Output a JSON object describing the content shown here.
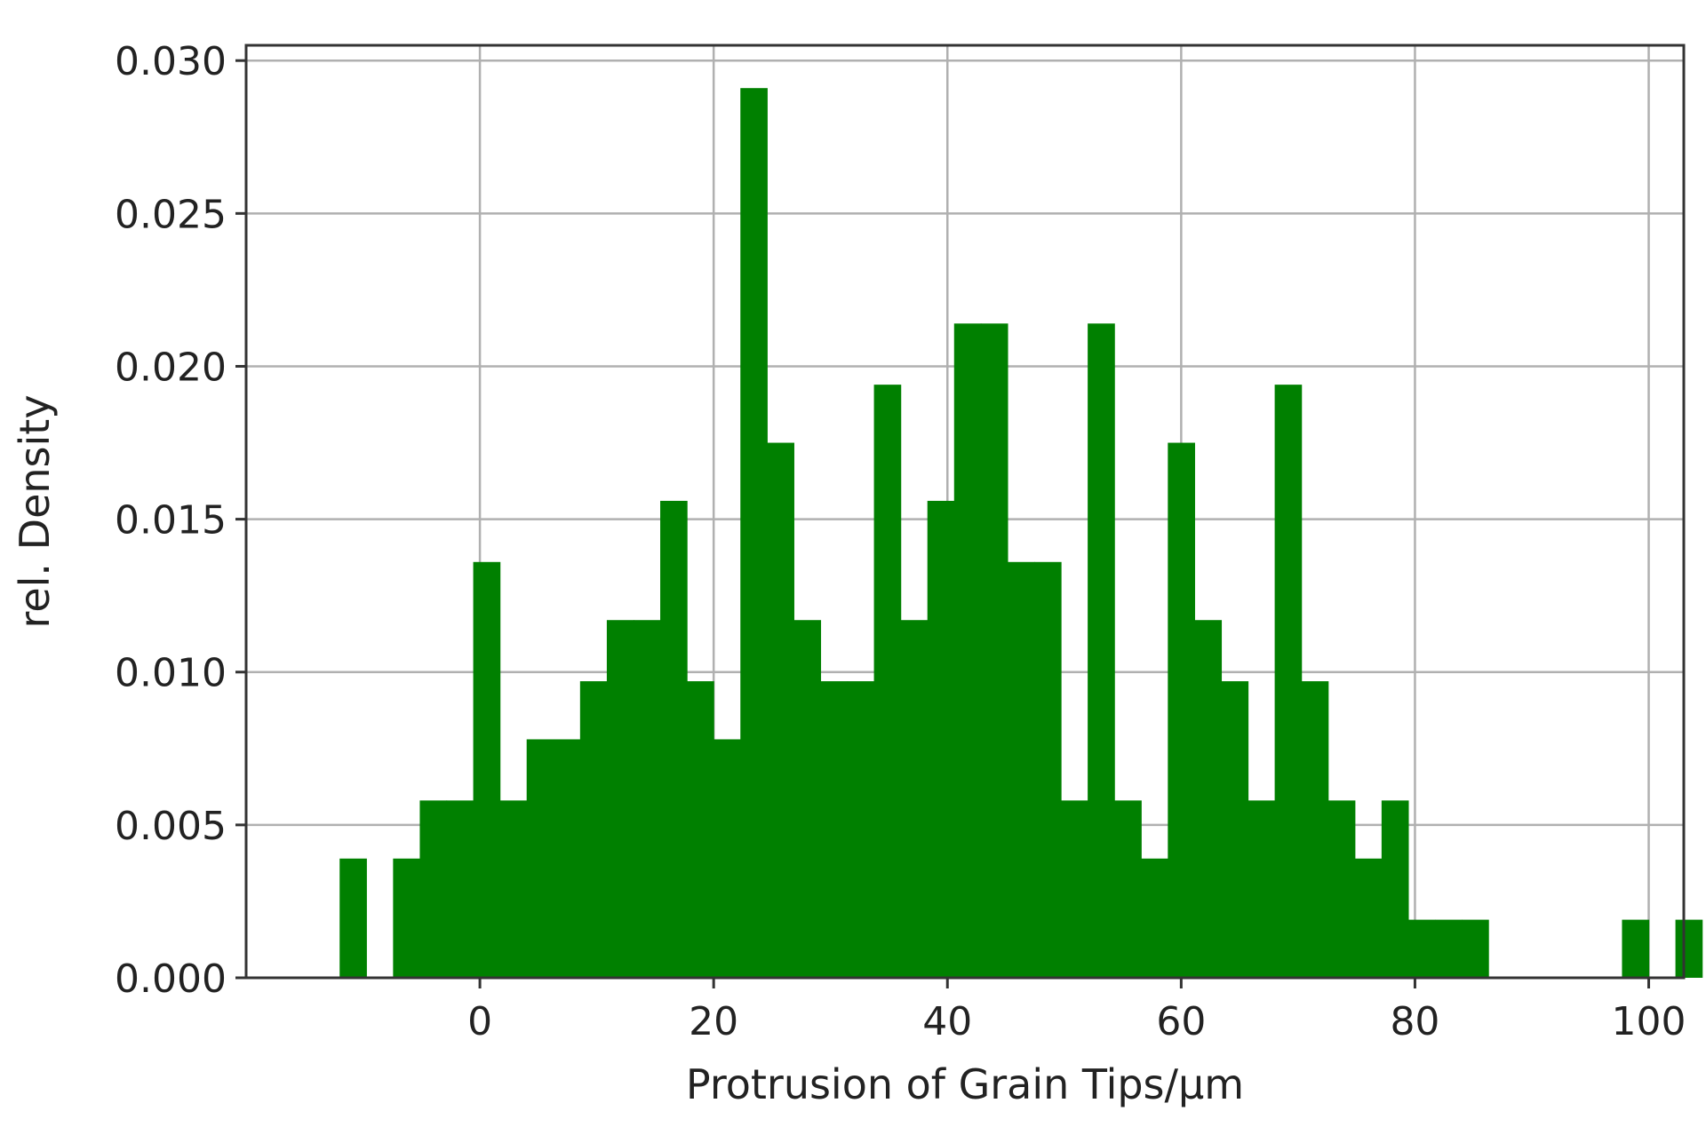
{
  "chart_data": {
    "type": "bar",
    "title": "",
    "xlabel": "Protrusion of Grain Tips/µm",
    "ylabel": "rel. Density",
    "xlim": [
      -20,
      103
    ],
    "ylim": [
      0,
      0.0305
    ],
    "grid": true,
    "bar_color": "#008000",
    "bin_width": 2.2857,
    "bin_start": -12.0,
    "values": [
      0.0039,
      0.0,
      0.0039,
      0.0058,
      0.0058,
      0.0136,
      0.0058,
      0.0078,
      0.0078,
      0.0097,
      0.0117,
      0.0117,
      0.0156,
      0.0097,
      0.0078,
      0.0291,
      0.0175,
      0.0117,
      0.0097,
      0.0097,
      0.0194,
      0.0117,
      0.0156,
      0.0214,
      0.0214,
      0.0136,
      0.0136,
      0.0058,
      0.0214,
      0.0058,
      0.0039,
      0.0175,
      0.0117,
      0.0097,
      0.0058,
      0.0194,
      0.0097,
      0.0058,
      0.0039,
      0.0058,
      0.0019,
      0.0019,
      0.0019,
      0.0,
      0.0,
      0.0,
      0.0,
      0.0,
      0.0019,
      0.0,
      0.0019
    ],
    "xticks": [
      0,
      20,
      40,
      60,
      80,
      100
    ],
    "xtick_labels": [
      "0",
      "20",
      "40",
      "60",
      "80",
      "100"
    ],
    "yticks": [
      0.0,
      0.005,
      0.01,
      0.015,
      0.02,
      0.025,
      0.03
    ],
    "ytick_labels": [
      "0.000",
      "0.005",
      "0.010",
      "0.015",
      "0.020",
      "0.025",
      "0.030"
    ]
  }
}
